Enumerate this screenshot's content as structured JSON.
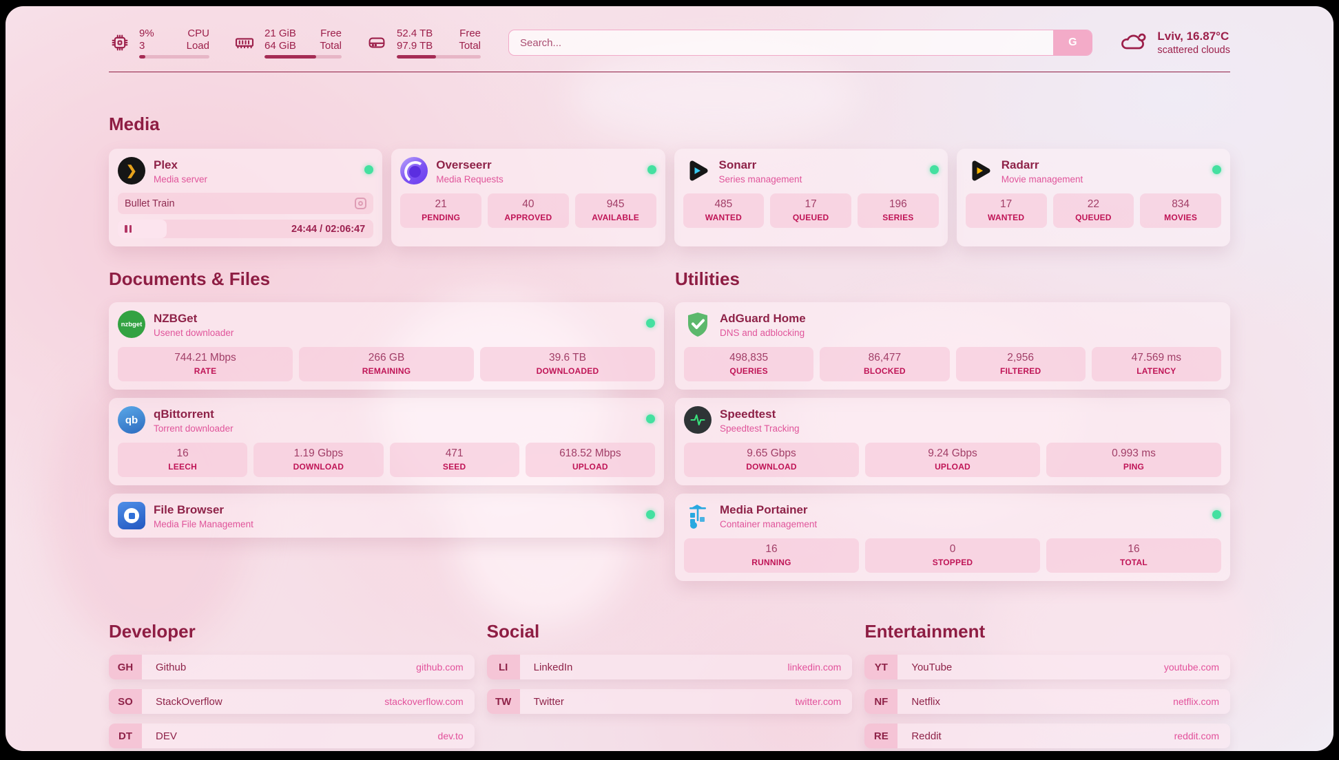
{
  "colors": {
    "maroon": "#9c2150",
    "pink": "#e2519b",
    "green": "#44e0a0"
  },
  "header": {
    "cpu": {
      "pct": "9%",
      "count": "3",
      "label1": "CPU",
      "label2": "Load",
      "progress": 9
    },
    "ram": {
      "free": "21 GiB",
      "total": "64 GiB",
      "label1": "Free",
      "label2": "Total",
      "progress": 67
    },
    "disk": {
      "free": "52.4 TB",
      "total": "97.9 TB",
      "label1": "Free",
      "label2": "Total",
      "progress": 47
    },
    "search": {
      "placeholder": "Search...",
      "button_label": "G"
    },
    "weather": {
      "title": "Lviv, 16.87°C",
      "subtitle": "scattered clouds"
    }
  },
  "media": {
    "heading": "Media",
    "plex": {
      "name": "Plex",
      "subtitle": "Media server",
      "now_playing": "Bullet Train",
      "time": "24:44 / 02:06:47",
      "progress": 19
    },
    "overseerr": {
      "name": "Overseerr",
      "subtitle": "Media Requests",
      "stats": [
        {
          "value": "21",
          "label": "PENDING"
        },
        {
          "value": "40",
          "label": "APPROVED"
        },
        {
          "value": "945",
          "label": "AVAILABLE"
        }
      ]
    },
    "sonarr": {
      "name": "Sonarr",
      "subtitle": "Series management",
      "stats": [
        {
          "value": "485",
          "label": "WANTED"
        },
        {
          "value": "17",
          "label": "QUEUED"
        },
        {
          "value": "196",
          "label": "SERIES"
        }
      ]
    },
    "radarr": {
      "name": "Radarr",
      "subtitle": "Movie management",
      "stats": [
        {
          "value": "17",
          "label": "WANTED"
        },
        {
          "value": "22",
          "label": "QUEUED"
        },
        {
          "value": "834",
          "label": "MOVIES"
        }
      ]
    }
  },
  "documents": {
    "heading": "Documents & Files",
    "nzbget": {
      "name": "NZBGet",
      "subtitle": "Usenet downloader",
      "icon_text": "nzbget",
      "stats": [
        {
          "value": "744.21 Mbps",
          "label": "RATE"
        },
        {
          "value": "266 GB",
          "label": "REMAINING"
        },
        {
          "value": "39.6 TB",
          "label": "DOWNLOADED"
        }
      ]
    },
    "qbittorrent": {
      "name": "qBittorrent",
      "subtitle": "Torrent downloader",
      "icon_text": "qb",
      "stats": [
        {
          "value": "16",
          "label": "LEECH"
        },
        {
          "value": "1.19 Gbps",
          "label": "DOWNLOAD"
        },
        {
          "value": "471",
          "label": "SEED"
        },
        {
          "value": "618.52 Mbps",
          "label": "UPLOAD"
        }
      ]
    },
    "filebrowser": {
      "name": "File Browser",
      "subtitle": "Media File Management"
    }
  },
  "utilities": {
    "heading": "Utilities",
    "adguard": {
      "name": "AdGuard Home",
      "subtitle": "DNS and adblocking",
      "stats": [
        {
          "value": "498,835",
          "label": "QUERIES"
        },
        {
          "value": "86,477",
          "label": "BLOCKED"
        },
        {
          "value": "2,956",
          "label": "FILTERED"
        },
        {
          "value": "47.569 ms",
          "label": "LATENCY"
        }
      ]
    },
    "speedtest": {
      "name": "Speedtest",
      "subtitle": "Speedtest Tracking",
      "stats": [
        {
          "value": "9.65 Gbps",
          "label": "DOWNLOAD"
        },
        {
          "value": "9.24 Gbps",
          "label": "UPLOAD"
        },
        {
          "value": "0.993 ms",
          "label": "PING"
        }
      ]
    },
    "portainer": {
      "name": "Media Portainer",
      "subtitle": "Container management",
      "stats": [
        {
          "value": "16",
          "label": "RUNNING"
        },
        {
          "value": "0",
          "label": "STOPPED"
        },
        {
          "value": "16",
          "label": "TOTAL"
        }
      ]
    }
  },
  "bookmarks": {
    "developer": {
      "heading": "Developer",
      "items": [
        {
          "abbr": "GH",
          "name": "Github",
          "url": "github.com"
        },
        {
          "abbr": "SO",
          "name": "StackOverflow",
          "url": "stackoverflow.com"
        },
        {
          "abbr": "DT",
          "name": "DEV",
          "url": "dev.to"
        }
      ]
    },
    "social": {
      "heading": "Social",
      "items": [
        {
          "abbr": "LI",
          "name": "LinkedIn",
          "url": "linkedin.com"
        },
        {
          "abbr": "TW",
          "name": "Twitter",
          "url": "twitter.com"
        }
      ]
    },
    "entertainment": {
      "heading": "Entertainment",
      "items": [
        {
          "abbr": "YT",
          "name": "YouTube",
          "url": "youtube.com"
        },
        {
          "abbr": "NF",
          "name": "Netflix",
          "url": "netflix.com"
        },
        {
          "abbr": "RE",
          "name": "Reddit",
          "url": "reddit.com"
        }
      ]
    }
  }
}
